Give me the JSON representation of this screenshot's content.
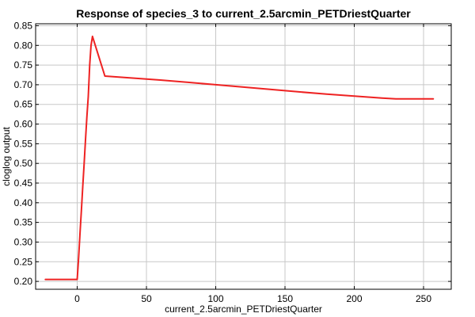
{
  "chart_data": {
    "type": "line",
    "title": "Response of species_3 to current_2.5arcmin_PETDriestQuarter",
    "xlabel": "current_2.5arcmin_PETDriestQuarter",
    "ylabel": "cloglog output",
    "xlim": [
      -30,
      270
    ],
    "ylim": [
      0.18,
      0.855
    ],
    "grid": true,
    "line_color": "#ee2222",
    "x_ticks": [
      0,
      50,
      100,
      150,
      200,
      250
    ],
    "y_ticks": [
      0.2,
      0.25,
      0.3,
      0.35,
      0.4,
      0.45,
      0.5,
      0.55,
      0.6,
      0.65,
      0.7,
      0.75,
      0.8,
      0.85
    ],
    "series": [
      {
        "x": [
          -23,
          0,
          1,
          2,
          3,
          4,
          5,
          6,
          7,
          8,
          9,
          10,
          11,
          20,
          40,
          60,
          80,
          100,
          120,
          140,
          160,
          180,
          200,
          220,
          230,
          257
        ],
        "y": [
          0.205,
          0.205,
          0.26,
          0.32,
          0.38,
          0.44,
          0.5,
          0.56,
          0.62,
          0.67,
          0.75,
          0.8,
          0.823,
          0.722,
          0.717,
          0.712,
          0.706,
          0.7,
          0.694,
          0.688,
          0.682,
          0.676,
          0.671,
          0.666,
          0.664,
          0.664
        ]
      }
    ]
  }
}
